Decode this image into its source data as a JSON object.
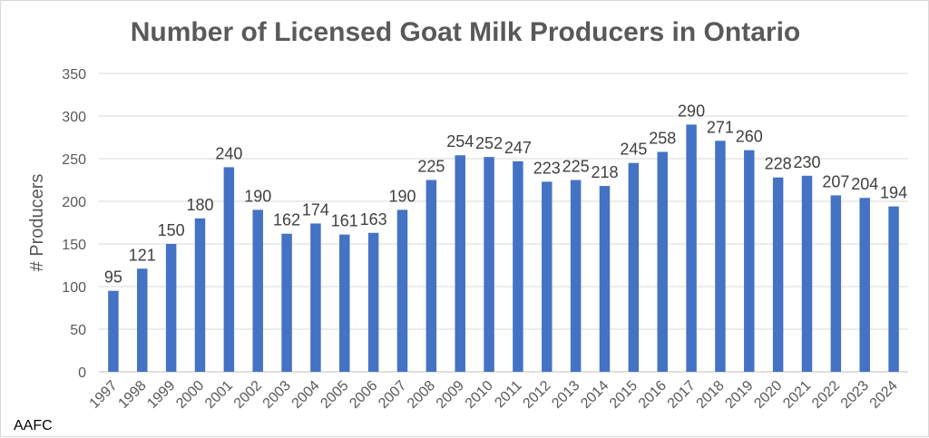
{
  "source_note": "AAFC",
  "chart_data": {
    "type": "bar",
    "title": "Number of Licensed Goat Milk Producers in Ontario",
    "xlabel": "",
    "ylabel": "# Producers",
    "ylim": [
      0,
      350
    ],
    "yticks": [
      0,
      50,
      100,
      150,
      200,
      250,
      300,
      350
    ],
    "grid": true,
    "bar_color": "#4472c4",
    "categories": [
      "1997",
      "1998",
      "1999",
      "2000",
      "2001",
      "2002",
      "2003",
      "2004",
      "2005",
      "2006",
      "2007",
      "2008",
      "2009",
      "2010",
      "2011",
      "2012",
      "2013",
      "2014",
      "2015",
      "2016",
      "2017",
      "2018",
      "2019",
      "2020",
      "2021",
      "2022",
      "2023",
      "2024"
    ],
    "values": [
      95,
      121,
      150,
      180,
      240,
      190,
      162,
      174,
      161,
      163,
      190,
      225,
      254,
      252,
      247,
      223,
      225,
      218,
      245,
      258,
      290,
      271,
      260,
      228,
      230,
      207,
      204,
      194
    ]
  }
}
